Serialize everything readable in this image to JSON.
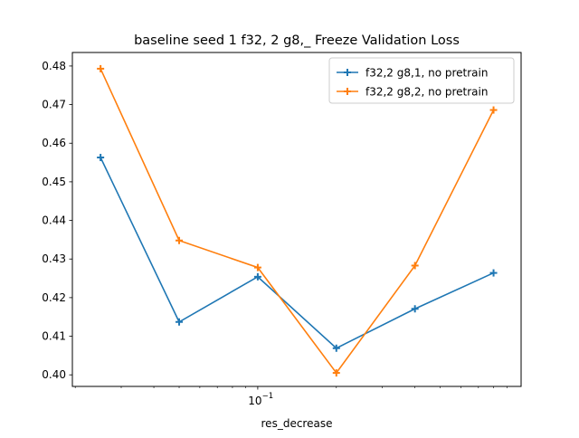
{
  "chart_data": {
    "type": "line",
    "title": "baseline seed 1 f32, 2 g8,_ Freeze Validation Loss",
    "xlabel": "res_decrease",
    "ylabel": "",
    "x_scale": "log",
    "x": [
      0.025,
      0.05,
      0.1,
      0.2,
      0.4,
      0.8
    ],
    "x_major_ticks": [
      {
        "value": 0.1,
        "base": "10",
        "exp": "−1"
      }
    ],
    "xlim": [
      0.0195,
      1.02
    ],
    "ylim": [
      0.397,
      0.4835
    ],
    "yticks": [
      "0.40",
      "0.41",
      "0.42",
      "0.43",
      "0.44",
      "0.45",
      "0.46",
      "0.47",
      "0.48"
    ],
    "grid": false,
    "legend": "top-right",
    "series": [
      {
        "name": "f32,2 g8,1, no pretrain",
        "color": "#1f77b4",
        "marker": "plus",
        "values": [
          0.4563,
          0.4137,
          0.4254,
          0.4069,
          0.4171,
          0.4264
        ]
      },
      {
        "name": "f32,2 g8,2, no pretrain",
        "color": "#ff7f0e",
        "marker": "plus",
        "values": [
          0.4793,
          0.4348,
          0.4278,
          0.4005,
          0.4283,
          0.4686
        ]
      }
    ]
  }
}
